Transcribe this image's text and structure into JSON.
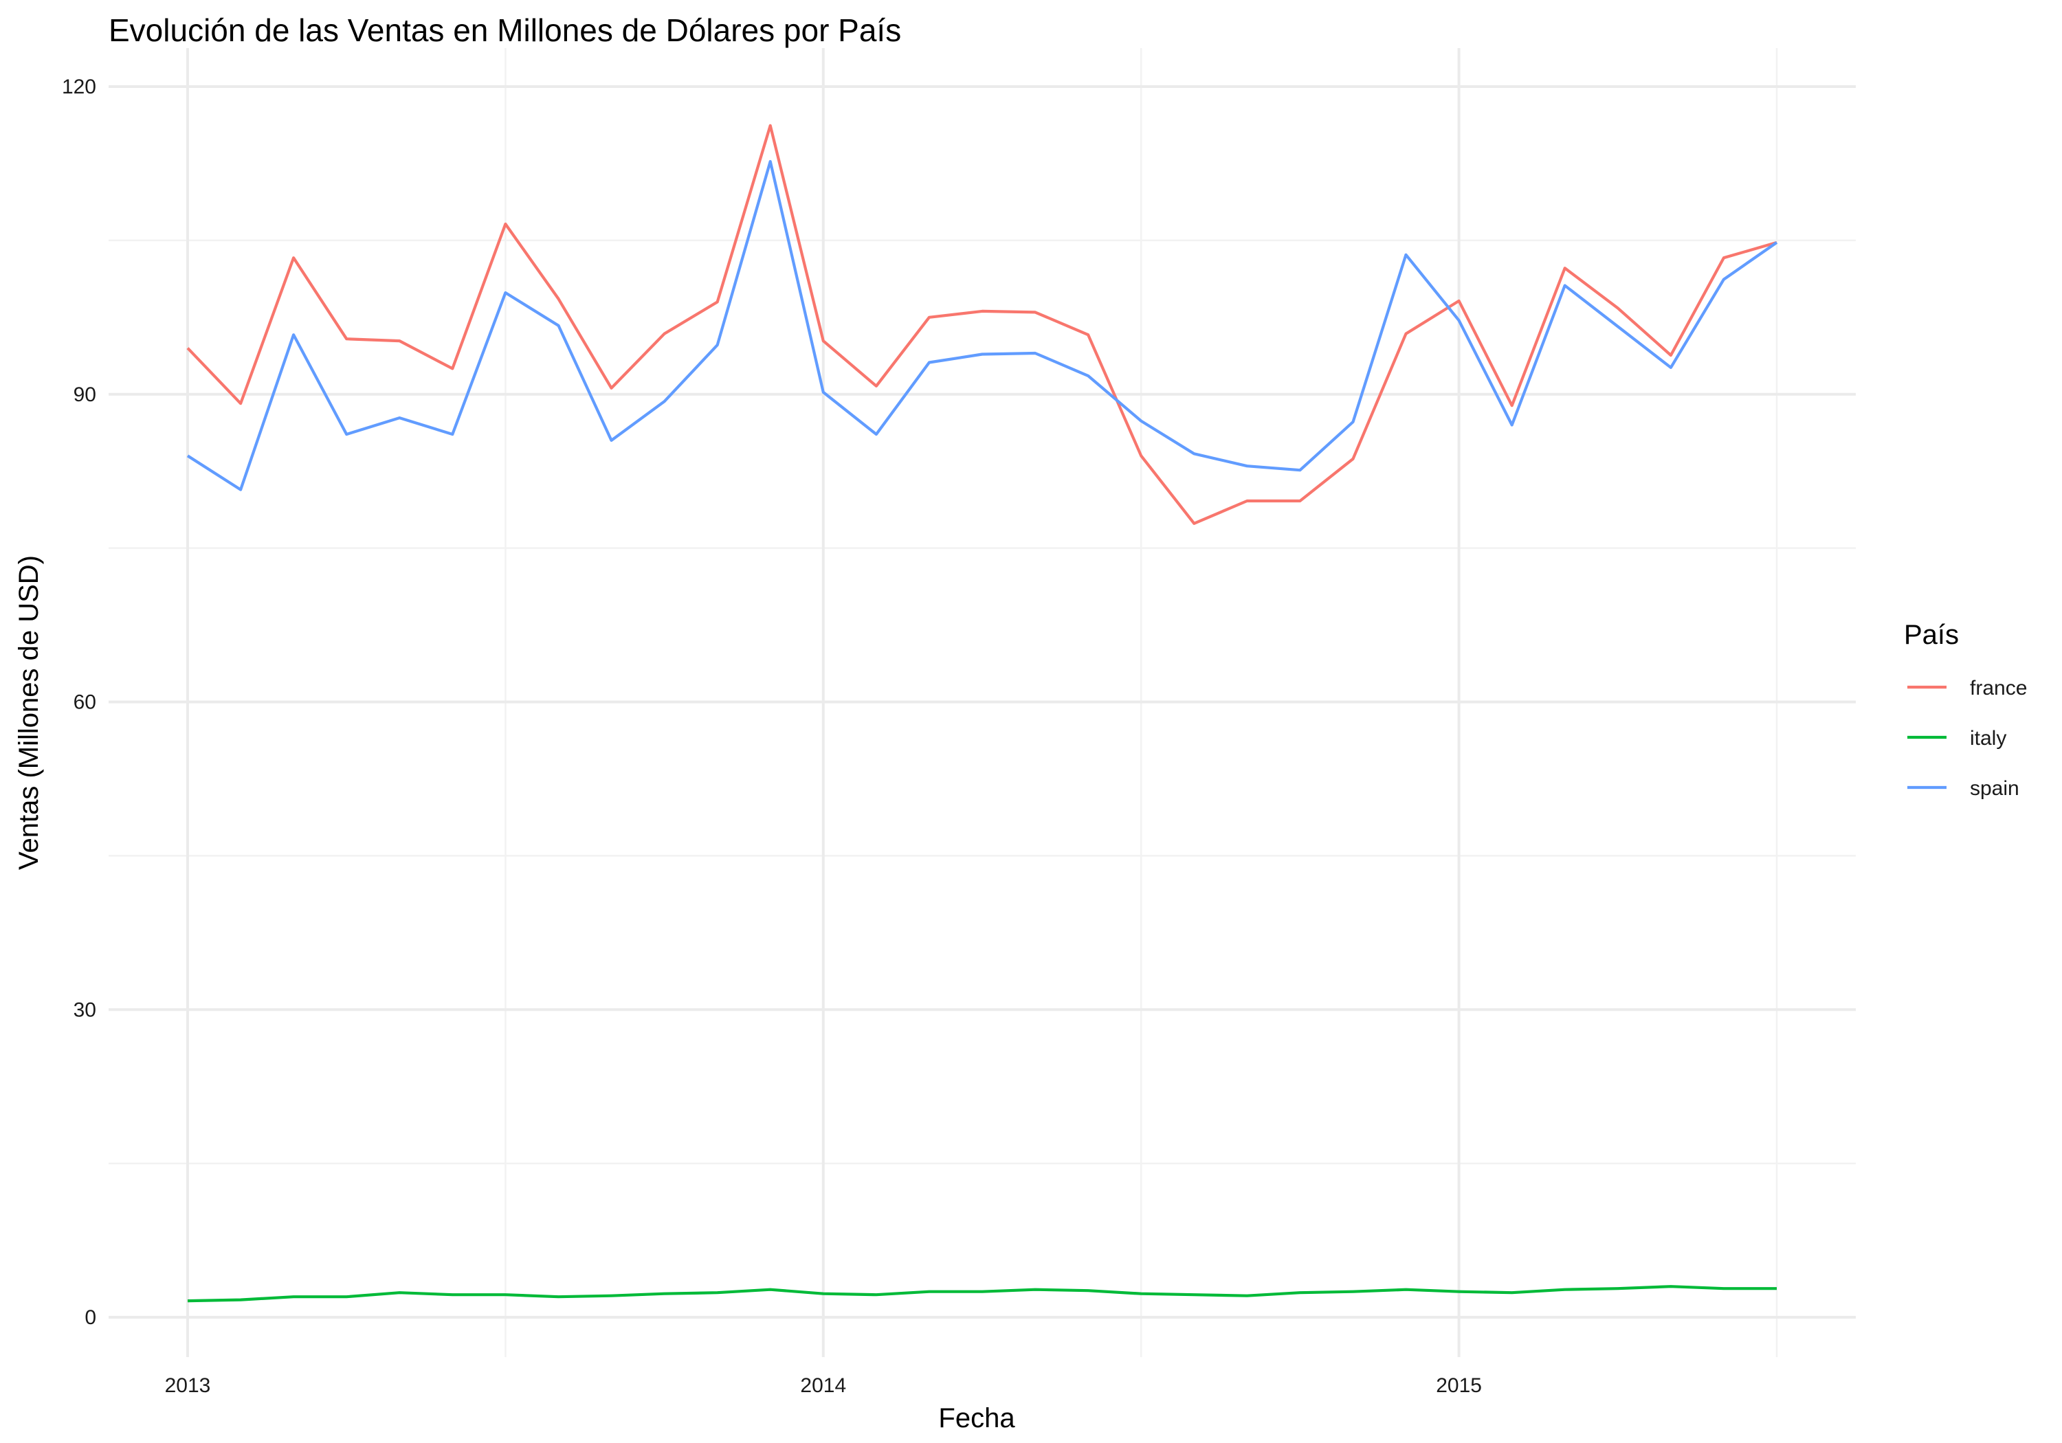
{
  "chart_data": {
    "type": "line",
    "title": "Evolución de las Ventas en Millones de Dólares por País",
    "xlabel": "Fecha",
    "ylabel": "Ventas (Millones de USD)",
    "ylim": [
      0,
      120
    ],
    "y_ticks": [
      0,
      30,
      60,
      90,
      120
    ],
    "x_ticks": [
      "2013",
      "2014",
      "2015"
    ],
    "x_start": "2013-01",
    "x_end": "2015-07",
    "grid": true,
    "legend": {
      "title": "País",
      "position": "right"
    },
    "x": [
      "2013-01",
      "2013-02",
      "2013-03",
      "2013-04",
      "2013-05",
      "2013-06",
      "2013-07",
      "2013-08",
      "2013-09",
      "2013-10",
      "2013-11",
      "2013-12",
      "2014-01",
      "2014-02",
      "2014-03",
      "2014-04",
      "2014-05",
      "2014-06",
      "2014-07",
      "2014-08",
      "2014-09",
      "2014-10",
      "2014-11",
      "2014-12",
      "2015-01",
      "2015-02",
      "2015-03",
      "2015-04",
      "2015-05",
      "2015-06",
      "2015-07"
    ],
    "series": [
      {
        "name": "france",
        "color": "#F8766D",
        "values": [
          94.5,
          89.1,
          103.3,
          95.4,
          95.2,
          92.5,
          106.6,
          99.3,
          90.6,
          95.9,
          99.0,
          116.2,
          95.2,
          90.8,
          97.5,
          98.1,
          98.0,
          95.8,
          84.0,
          77.4,
          79.6,
          79.6,
          83.7,
          95.9,
          99.1,
          88.9,
          102.3,
          98.4,
          93.8,
          103.3,
          104.8
        ]
      },
      {
        "name": "italy",
        "color": "#00BA38",
        "values": [
          1.6,
          1.7,
          2.0,
          2.0,
          2.4,
          2.2,
          2.2,
          2.0,
          2.1,
          2.3,
          2.4,
          2.7,
          2.3,
          2.2,
          2.5,
          2.5,
          2.7,
          2.6,
          2.3,
          2.2,
          2.1,
          2.4,
          2.5,
          2.7,
          2.5,
          2.4,
          2.7,
          2.8,
          3.0,
          2.8,
          2.8
        ]
      },
      {
        "name": "spain",
        "color": "#619CFF",
        "values": [
          84.0,
          80.7,
          95.8,
          86.1,
          87.7,
          86.1,
          99.9,
          96.7,
          85.5,
          89.3,
          94.8,
          112.7,
          90.2,
          86.1,
          93.1,
          93.9,
          94.0,
          91.8,
          87.4,
          84.2,
          83.0,
          82.6,
          87.3,
          103.6,
          97.2,
          87.0,
          100.6,
          96.6,
          92.6,
          101.2,
          104.8
        ]
      }
    ]
  }
}
